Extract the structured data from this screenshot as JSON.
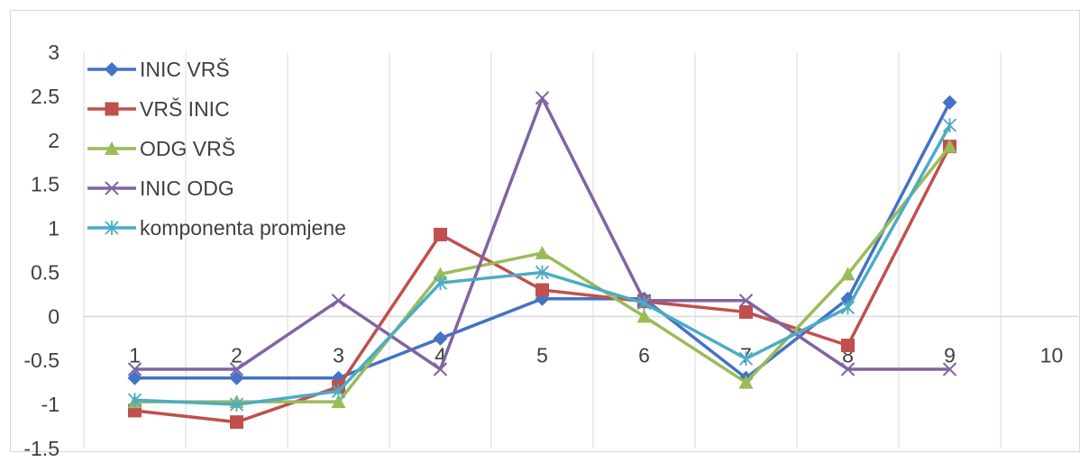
{
  "chart_data": {
    "type": "line",
    "x": [
      1,
      2,
      3,
      4,
      5,
      6,
      7,
      8,
      9
    ],
    "x_tick_labels": [
      "1",
      "2",
      "3",
      "4",
      "5",
      "6",
      "7",
      "8",
      "9",
      "10"
    ],
    "y_tick_labels": [
      "3",
      "2.5",
      "2",
      "1.5",
      "1",
      "0.5",
      "0",
      "-0.5",
      "-1",
      "-1.5"
    ],
    "ylim": [
      -1.5,
      3
    ],
    "xlim": [
      0.5,
      10.5
    ],
    "grid": "vertical",
    "legend_position": "top-left",
    "series": [
      {
        "name": "INIC VRŠ",
        "color": "#4472c4",
        "marker": "diamond",
        "values": [
          -0.7,
          -0.7,
          -0.7,
          -0.25,
          0.2,
          0.2,
          -0.7,
          0.2,
          2.43
        ]
      },
      {
        "name": "VRŠ INIC",
        "color": "#c0504d",
        "marker": "square",
        "values": [
          -1.07,
          -1.2,
          -0.8,
          0.93,
          0.3,
          0.17,
          0.05,
          -0.33,
          1.93
        ]
      },
      {
        "name": "ODG VRŠ",
        "color": "#9bbb59",
        "marker": "triangle",
        "values": [
          -0.97,
          -0.97,
          -0.97,
          0.48,
          0.72,
          0.0,
          -0.75,
          0.48,
          1.93
        ]
      },
      {
        "name": "INIC ODG",
        "color": "#8064a2",
        "marker": "x",
        "values": [
          -0.6,
          -0.6,
          0.18,
          -0.6,
          2.48,
          0.18,
          0.18,
          -0.6,
          -0.6
        ]
      },
      {
        "name": "komponenta promjene",
        "color": "#4bacc6",
        "marker": "star",
        "values": [
          -0.95,
          -1.0,
          -0.85,
          0.38,
          0.5,
          0.15,
          -0.48,
          0.1,
          2.17
        ]
      }
    ]
  }
}
